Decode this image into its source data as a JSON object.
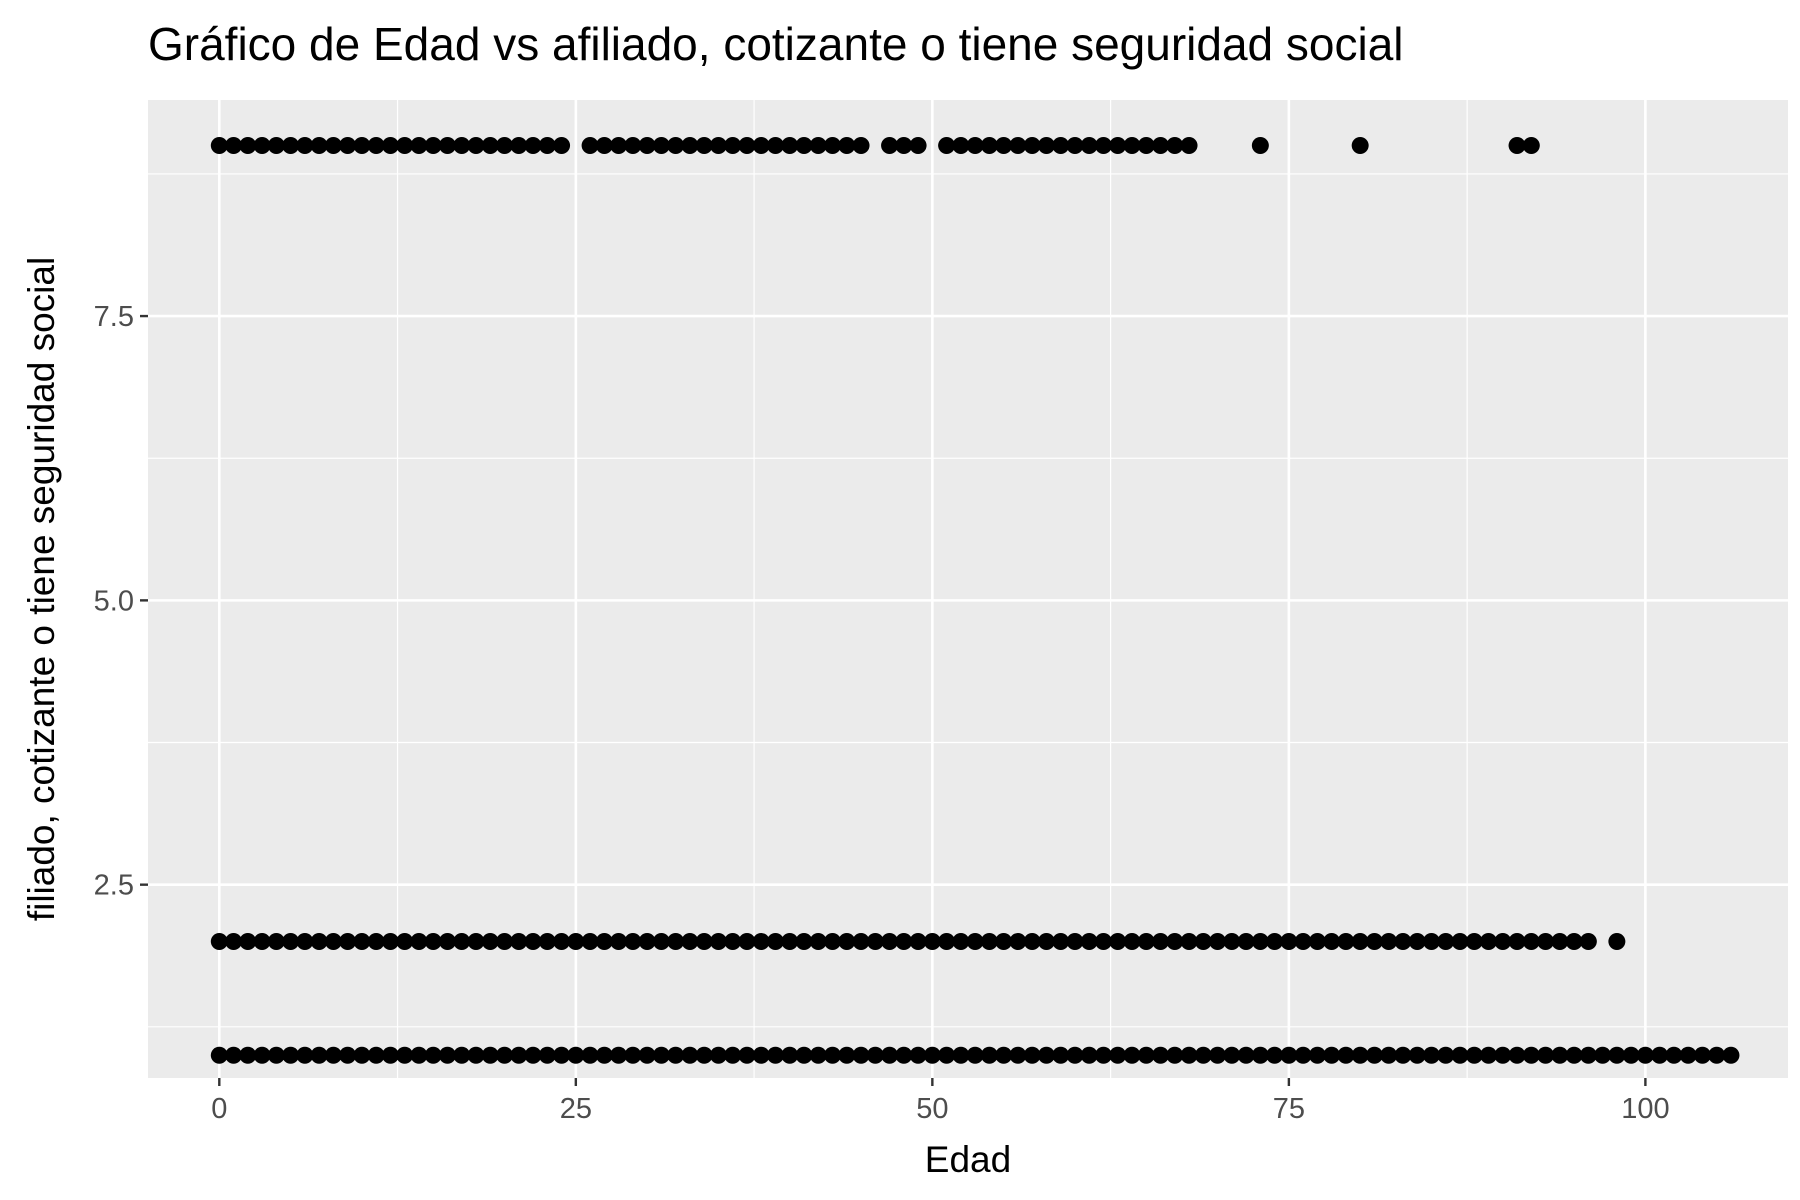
{
  "chart_data": {
    "type": "scatter",
    "title": "Gráfico de Edad vs afiliado, cotizante o tiene seguridad social",
    "xlabel": "Edad",
    "ylabel": "filiado, cotizante o tiene seguridad social",
    "xlim": [
      -5,
      110
    ],
    "ylim": [
      0.8,
      9.4
    ],
    "x_ticks": [
      0,
      25,
      50,
      75,
      100
    ],
    "x_tick_labels": [
      "0",
      "25",
      "50",
      "75",
      "100"
    ],
    "y_ticks": [
      2.5,
      5.0,
      7.5
    ],
    "y_tick_labels": [
      "2.5",
      "5.0",
      "7.5"
    ],
    "grid": true,
    "colors": {
      "panel": "#ebebeb",
      "grid": "#ffffff",
      "point": "#000000",
      "tick": "#333333"
    },
    "series": [
      {
        "y": 9,
        "x": [
          0,
          1,
          2,
          3,
          4,
          5,
          6,
          7,
          8,
          9,
          10,
          11,
          12,
          13,
          14,
          15,
          16,
          17,
          18,
          19,
          20,
          21,
          22,
          23,
          24,
          26,
          27,
          28,
          29,
          30,
          31,
          32,
          33,
          34,
          35,
          36,
          37,
          38,
          39,
          40,
          41,
          42,
          43,
          44,
          45,
          47,
          48,
          49,
          51,
          52,
          53,
          54,
          55,
          56,
          57,
          58,
          59,
          60,
          61,
          62,
          63,
          64,
          65,
          66,
          67,
          68,
          73,
          80,
          91,
          92
        ]
      },
      {
        "y": 2,
        "x": [
          0,
          1,
          2,
          3,
          4,
          5,
          6,
          7,
          8,
          9,
          10,
          11,
          12,
          13,
          14,
          15,
          16,
          17,
          18,
          19,
          20,
          21,
          22,
          23,
          24,
          25,
          26,
          27,
          28,
          29,
          30,
          31,
          32,
          33,
          34,
          35,
          36,
          37,
          38,
          39,
          40,
          41,
          42,
          43,
          44,
          45,
          46,
          47,
          48,
          49,
          50,
          51,
          52,
          53,
          54,
          55,
          56,
          57,
          58,
          59,
          60,
          61,
          62,
          63,
          64,
          65,
          66,
          67,
          68,
          69,
          70,
          71,
          72,
          73,
          74,
          75,
          76,
          77,
          78,
          79,
          80,
          81,
          82,
          83,
          84,
          85,
          86,
          87,
          88,
          89,
          90,
          91,
          92,
          93,
          94,
          95,
          96,
          98
        ]
      },
      {
        "y": 1,
        "x": [
          0,
          1,
          2,
          3,
          4,
          5,
          6,
          7,
          8,
          9,
          10,
          11,
          12,
          13,
          14,
          15,
          16,
          17,
          18,
          19,
          20,
          21,
          22,
          23,
          24,
          25,
          26,
          27,
          28,
          29,
          30,
          31,
          32,
          33,
          34,
          35,
          36,
          37,
          38,
          39,
          40,
          41,
          42,
          43,
          44,
          45,
          46,
          47,
          48,
          49,
          50,
          51,
          52,
          53,
          54,
          55,
          56,
          57,
          58,
          59,
          60,
          61,
          62,
          63,
          64,
          65,
          66,
          67,
          68,
          69,
          70,
          71,
          72,
          73,
          74,
          75,
          76,
          77,
          78,
          79,
          80,
          81,
          82,
          83,
          84,
          85,
          86,
          87,
          88,
          89,
          90,
          91,
          92,
          93,
          94,
          95,
          96,
          97,
          98,
          99,
          100,
          101,
          102,
          103,
          104,
          105,
          106
        ]
      }
    ]
  }
}
